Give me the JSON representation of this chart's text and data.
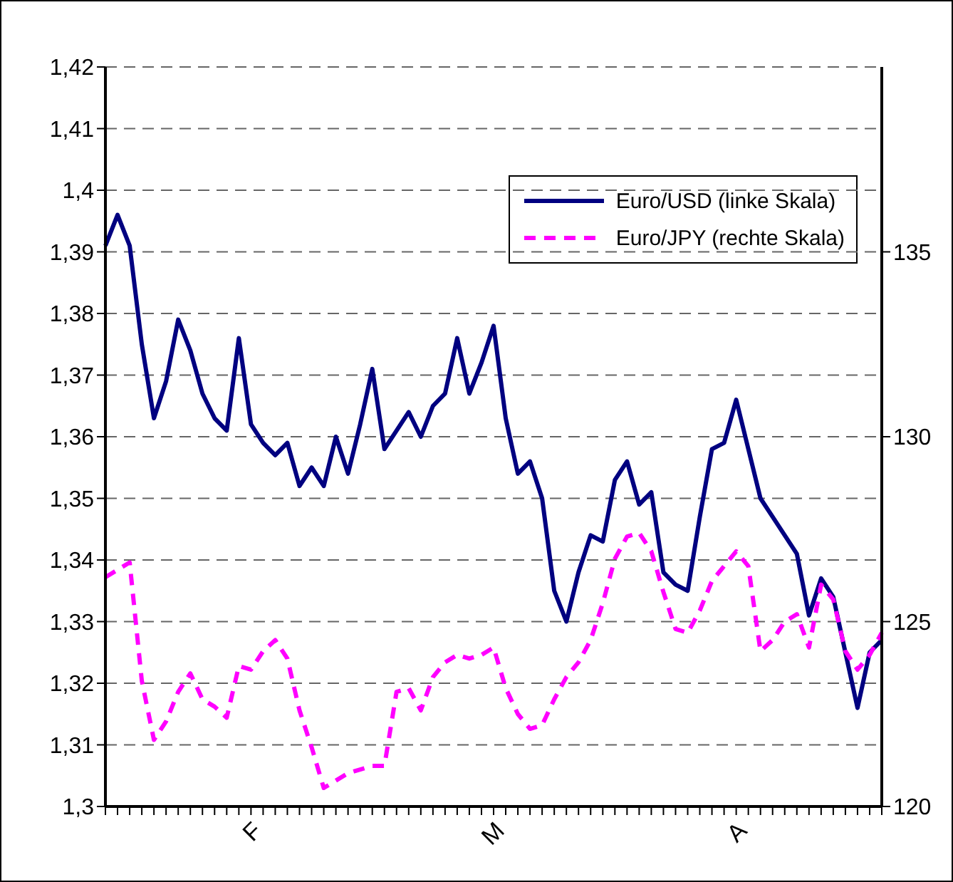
{
  "chart_data": {
    "type": "line",
    "categories": [
      null,
      null,
      null,
      null,
      null,
      null,
      null,
      null,
      null,
      null,
      null,
      null,
      null,
      "F",
      null,
      null,
      null,
      null,
      null,
      null,
      null,
      null,
      null,
      null,
      null,
      null,
      null,
      null,
      null,
      null,
      null,
      null,
      null,
      "M",
      null,
      null,
      null,
      null,
      null,
      null,
      null,
      null,
      null,
      null,
      null,
      null,
      null,
      null,
      null,
      null,
      null,
      null,
      null,
      "A",
      null,
      null,
      null,
      null,
      null,
      null,
      null,
      null,
      null,
      null,
      null
    ],
    "series": [
      {
        "name": "Euro/USD (linke Skala)",
        "color": "#000080",
        "line_style": "solid",
        "values": [
          1.391,
          1.396,
          1.391,
          1.375,
          1.363,
          1.369,
          1.379,
          1.374,
          1.367,
          1.363,
          1.361,
          1.376,
          1.362,
          1.359,
          1.357,
          1.359,
          1.352,
          1.355,
          1.352,
          1.36,
          1.354,
          1.362,
          1.371,
          1.358,
          1.361,
          1.364,
          1.36,
          1.365,
          1.367,
          1.376,
          1.367,
          1.372,
          1.378,
          1.363,
          1.354,
          1.356,
          1.35,
          1.335,
          1.33,
          1.338,
          1.344,
          1.343,
          1.353,
          1.356,
          1.349,
          1.351,
          1.338,
          1.336,
          1.335,
          1.347,
          1.358,
          1.359,
          1.366,
          1.358,
          1.35,
          1.347,
          1.344,
          1.341,
          1.331,
          1.337,
          1.334,
          1.325,
          1.316,
          1.325,
          1.327
        ]
      },
      {
        "name": "Euro/JPY (rechte Skala)",
        "color": "#ff00ff",
        "line_style": "dashed",
        "axis": "y2",
        "values": [
          126.2,
          126.4,
          126.6,
          123.4,
          121.8,
          122.3,
          123.1,
          123.6,
          122.9,
          122.7,
          122.4,
          123.8,
          123.7,
          124.2,
          124.5,
          124,
          122.6,
          121.6,
          120.5,
          120.7,
          120.9,
          121,
          121.1,
          121.1,
          123.1,
          123.2,
          122.6,
          123.5,
          123.9,
          124.1,
          124,
          124.1,
          124.3,
          123.2,
          122.5,
          122.1,
          122.2,
          122.9,
          123.5,
          123.9,
          124.5,
          125.5,
          126.7,
          127.3,
          127.4,
          126.9,
          125.8,
          124.8,
          124.7,
          125.3,
          126.1,
          126.5,
          126.9,
          126.5,
          124.2,
          124.5,
          125,
          125.2,
          124.3,
          126,
          125.6,
          124.2,
          123.7,
          124.1,
          124.7
        ]
      }
    ],
    "ylim": [
      1.3,
      1.42
    ],
    "yticks": [
      {
        "value": 1.3,
        "label": "1,3"
      },
      {
        "value": 1.31,
        "label": "1,31"
      },
      {
        "value": 1.32,
        "label": "1,32"
      },
      {
        "value": 1.33,
        "label": "1,33"
      },
      {
        "value": 1.34,
        "label": "1,34"
      },
      {
        "value": 1.35,
        "label": "1,35"
      },
      {
        "value": 1.36,
        "label": "1,36"
      },
      {
        "value": 1.37,
        "label": "1,37"
      },
      {
        "value": 1.38,
        "label": "1,38"
      },
      {
        "value": 1.39,
        "label": "1,39"
      },
      {
        "value": 1.4,
        "label": "1,4"
      },
      {
        "value": 1.41,
        "label": "1,41"
      },
      {
        "value": 1.42,
        "label": "1,42"
      }
    ],
    "y2lim": [
      120,
      140
    ],
    "y2ticks": [
      120,
      125,
      130,
      135
    ],
    "grid": "y",
    "legend": "top right",
    "marker": "none"
  }
}
